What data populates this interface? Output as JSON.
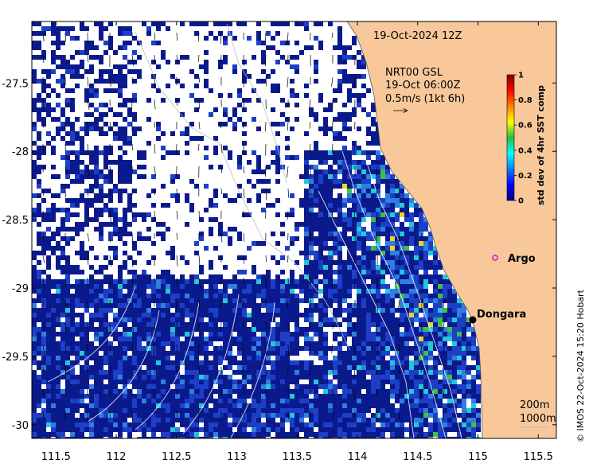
{
  "map": {
    "date_label": "19-Oct-2024 12Z",
    "legend_lines": [
      "NRT00 GSL",
      "19-Oct 06:00Z",
      "0.5m/s (1kt 6h)"
    ],
    "x_ticks": [
      "111.5",
      "112",
      "112.5",
      "113",
      "113.5",
      "114",
      "114.5",
      "115",
      "115.5"
    ],
    "y_ticks": [
      "-27.5",
      "-28",
      "-28.5",
      "-29",
      "-29.5",
      "-30"
    ],
    "x_tick_values": [
      111.5,
      112,
      112.5,
      113,
      113.5,
      114,
      114.5,
      115,
      115.5
    ],
    "y_tick_values": [
      -27.5,
      -28,
      -28.5,
      -29,
      -29.5,
      -30
    ],
    "lon_range": [
      111.3,
      115.65
    ],
    "lat_range": [
      -30.1,
      -27.05
    ],
    "places": [
      {
        "name": "Argo",
        "lon": 115.05,
        "lat": -28.83,
        "marker": "open-circle",
        "color": "#e000e0"
      },
      {
        "name": "Dongara",
        "lon": 114.93,
        "lat": -29.25,
        "marker": "filled-circle",
        "color": "#000000"
      }
    ],
    "bathymetry_labels": [
      "200m",
      "1000m"
    ],
    "colors": {
      "land": "#f9c89a",
      "ocean_low": "#0a1a8c",
      "no_data": "#ffffff"
    }
  },
  "colorbar": {
    "title": "std dev of 4hr SST comp",
    "ticks": [
      "0",
      "0.2",
      "0.4",
      "0.6",
      "0.8",
      "1"
    ],
    "range": [
      0,
      1
    ],
    "colormap": "jet"
  },
  "credit": "© IMOS 22-Oct-2024 15:20 Hobart"
}
